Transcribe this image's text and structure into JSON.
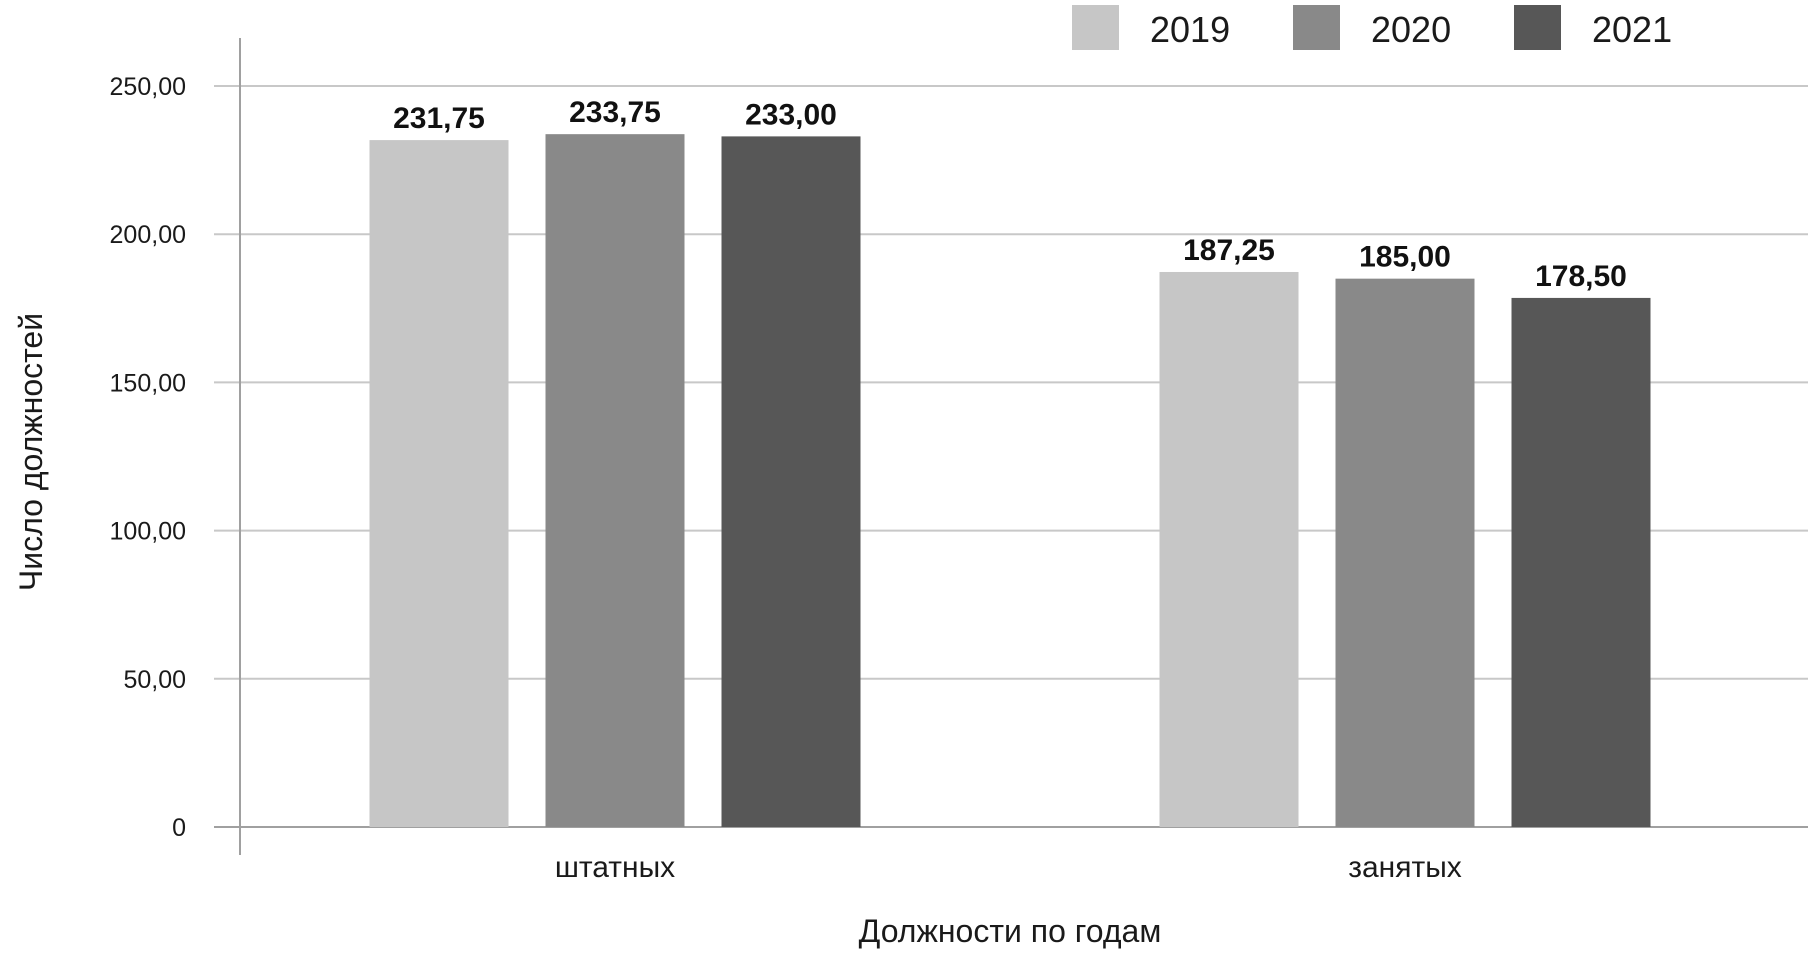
{
  "chart_data": {
    "type": "bar",
    "categories": [
      "штатных",
      "занятых"
    ],
    "series": [
      {
        "name": "2019",
        "values": [
          231.75,
          187.25
        ],
        "value_labels": [
          "231,75",
          "187,25"
        ],
        "color": "#c6c6c6"
      },
      {
        "name": "2020",
        "values": [
          233.75,
          185.0
        ],
        "value_labels": [
          "233,75",
          "185,00"
        ],
        "color": "#898989"
      },
      {
        "name": "2021",
        "values": [
          233.0,
          178.5
        ],
        "value_labels": [
          "233,00",
          "178,50"
        ],
        "color": "#575757"
      }
    ],
    "xlabel": "Должности по годам",
    "ylabel": "Число должностей",
    "ylim": [
      0,
      250
    ],
    "yticks": [
      {
        "value": 0,
        "label": "0"
      },
      {
        "value": 50,
        "label": "50,00"
      },
      {
        "value": 100,
        "label": "100,00"
      },
      {
        "value": 150,
        "label": "150,00"
      },
      {
        "value": 200,
        "label": "200,00"
      },
      {
        "value": 250,
        "label": "250,00"
      }
    ],
    "grid": true,
    "legend_position": "top-right",
    "gridline_color": "#c8c8c8",
    "axis_color": "#a0a0a0"
  }
}
